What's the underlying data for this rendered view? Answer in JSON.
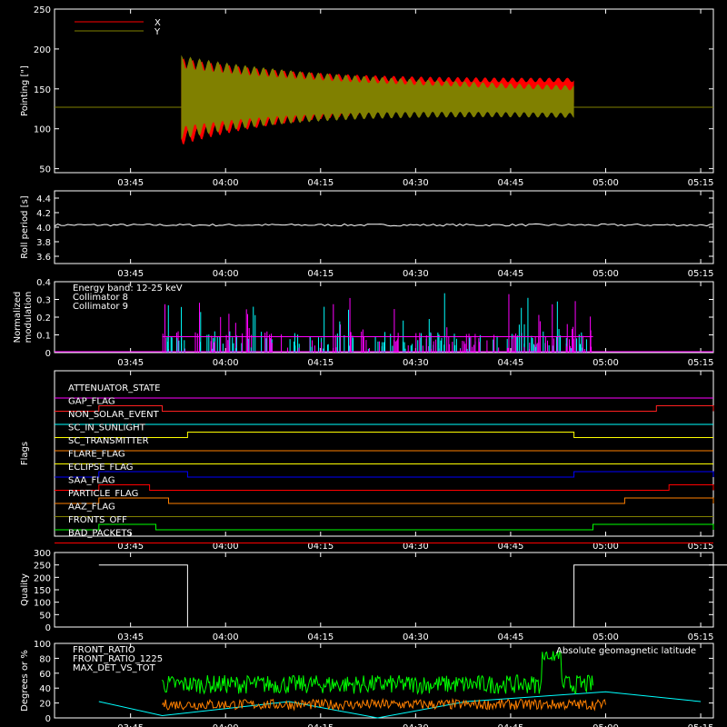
{
  "time_ticks": [
    "03:45",
    "04:00",
    "04:15",
    "04:30",
    "04:45",
    "05:00",
    "05:15"
  ],
  "chart_data": [
    {
      "type": "line",
      "ylabel": "Pointing [\"]",
      "ylim": [
        45,
        250
      ],
      "yticks": [
        50,
        100,
        150,
        200,
        250
      ],
      "legend": {
        "placement": "top-left",
        "entries": [
          {
            "name": "X",
            "color": "#ff0000"
          },
          {
            "name": "Y",
            "color": "#808000"
          }
        ]
      },
      "baseline": 127,
      "oscillation": {
        "start": "03:53",
        "end": "04:55",
        "x": {
          "color": "#ff0000",
          "center_start": 145,
          "center_end": 150,
          "amp_start": 88,
          "amp_end": 25
        },
        "y": {
          "color": "#808000",
          "center_start": 150,
          "center_end": 138,
          "amp_start": 85,
          "amp_end": 30
        }
      }
    },
    {
      "type": "line",
      "ylabel": "Roll period [s]",
      "ylim": [
        3.5,
        4.5
      ],
      "yticks": [
        "3.6",
        "3.8",
        "4.0",
        "4.2",
        "4.4"
      ],
      "series": [
        {
          "value": 4.03,
          "color": "#ffffff"
        }
      ]
    },
    {
      "type": "bar",
      "ylabel": "Normalized\nmodulation",
      "ylim": [
        0,
        0.4
      ],
      "yticks": [
        "0",
        "0.1",
        "0.2",
        "0.3",
        "0.4"
      ],
      "legend": {
        "placement": "top-left",
        "entries": [
          {
            "name": "Energy band: 12-25 keV",
            "color": "#ffffff"
          },
          {
            "name": "Collimator 8",
            "color": "#00ffff"
          },
          {
            "name": "Collimator 9",
            "color": "#ff00ff"
          }
        ]
      },
      "start": "03:50",
      "end": "04:58",
      "baseline_value": 0.09
    },
    {
      "type": "table",
      "ylabel": "Flags",
      "flags": [
        {
          "name": "ATTENUATOR_STATE",
          "color": "#ff00ff",
          "high": []
        },
        {
          "name": "GAP_FLAG",
          "color": "#ff2020",
          "high": [
            [
              "03:40",
              "03:50"
            ],
            [
              "05:08",
              "05:20"
            ]
          ]
        },
        {
          "name": "NON_SOLAR_EVENT",
          "color": "#00ffff",
          "high": []
        },
        {
          "name": "SC_IN_SUNLIGHT",
          "color": "#ffff00",
          "high": [
            [
              "03:54",
              "04:55"
            ]
          ]
        },
        {
          "name": "SC_TRANSMITTER",
          "color": "#ff8000",
          "high": []
        },
        {
          "name": "FLARE_FLAG",
          "color": "#ffff00",
          "high": []
        },
        {
          "name": "ECLIPSE_FLAG",
          "color": "#0000ff",
          "high": [
            [
              "03:40",
              "03:54"
            ],
            [
              "04:55",
              "05:20"
            ]
          ]
        },
        {
          "name": "SAA_FLAG",
          "color": "#ff0000",
          "high": [
            [
              "03:40",
              "03:48"
            ],
            [
              "05:10",
              "05:20"
            ]
          ]
        },
        {
          "name": "PARTICLE_FLAG",
          "color": "#ff8000",
          "high": [
            [
              "03:40",
              "03:51"
            ],
            [
              "05:03",
              "05:20"
            ]
          ]
        },
        {
          "name": "AAZ_FLAG",
          "color": "#808000",
          "high": []
        },
        {
          "name": "FRONTS_OFF",
          "color": "#00ff00",
          "high": [
            [
              "03:40",
              "03:49"
            ],
            [
              "04:58",
              "05:20"
            ]
          ]
        },
        {
          "name": "BAD_PACKETS",
          "color": "#ff0000",
          "high": []
        }
      ]
    },
    {
      "type": "line",
      "ylabel": "Quality",
      "ylim": [
        0,
        300
      ],
      "yticks": [
        "0",
        "50",
        "100",
        "150",
        "200",
        "250",
        "300"
      ],
      "series": [
        {
          "color": "#ffffff",
          "points": [
            [
              "03:40",
              250
            ],
            [
              "03:54",
              250
            ],
            [
              "03:54",
              0
            ],
            [
              "04:55",
              0
            ],
            [
              "04:55",
              250
            ],
            [
              "05:20",
              250
            ]
          ]
        }
      ]
    },
    {
      "type": "line",
      "ylabel": "Degrees or %",
      "ylim": [
        0,
        100
      ],
      "yticks": [
        "0",
        "20",
        "40",
        "60",
        "80",
        "100"
      ],
      "legend": {
        "placement": "top-left",
        "entries": [
          {
            "name": "FRONT_RATIO",
            "color": "#ffff00"
          },
          {
            "name": "FRONT_RATIO_1225",
            "color": "#00ff00"
          },
          {
            "name": "MAX_DET_VS_TOT",
            "color": "#ff8000"
          }
        ]
      },
      "annotation": {
        "text": "Absolute geomagnetic latitude",
        "color": "#00ffff"
      },
      "series": [
        {
          "name": "Absolute geomagnetic latitude",
          "color": "#00ffff",
          "points": [
            [
              "03:40",
              22
            ],
            [
              "03:50",
              3
            ],
            [
              "04:10",
              22
            ],
            [
              "04:24",
              0
            ],
            [
              "04:38",
              22
            ],
            [
              "05:00",
              35
            ],
            [
              "05:15",
              22
            ]
          ]
        },
        {
          "name": "FRONT_RATIO_1225",
          "color": "#00ff00",
          "start": "03:50",
          "end": "04:58",
          "level": 45
        },
        {
          "name": "MAX_DET_VS_TOT",
          "color": "#ff8000",
          "start": "03:50",
          "end": "05:00",
          "level": 18
        }
      ]
    }
  ]
}
